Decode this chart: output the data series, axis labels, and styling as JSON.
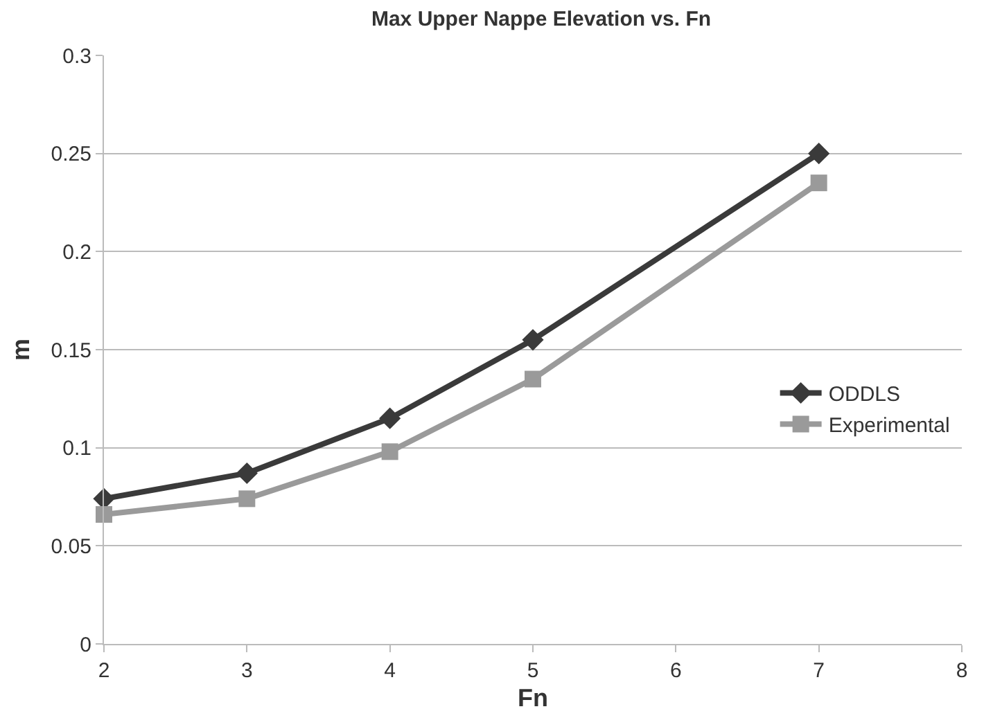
{
  "chart_data": {
    "type": "line",
    "title": "Max Upper Nappe Elevation vs. Fn",
    "xlabel": "Fn",
    "ylabel": "m",
    "x": [
      2,
      3,
      4,
      5,
      7
    ],
    "series": [
      {
        "name": "ODDLS",
        "color": "#3a3a3a",
        "marker": "diamond",
        "values": [
          0.074,
          0.087,
          0.115,
          0.155,
          0.25
        ]
      },
      {
        "name": "Experimental",
        "color": "#9a9a9a",
        "marker": "square",
        "values": [
          0.066,
          0.074,
          0.098,
          0.135,
          0.235
        ]
      }
    ],
    "xlim": [
      2,
      8
    ],
    "xticks": [
      2,
      3,
      4,
      5,
      6,
      7,
      8
    ],
    "ylim": [
      0,
      0.3
    ],
    "yticks": [
      0,
      0.05,
      0.1,
      0.15,
      0.2,
      0.25,
      0.3
    ],
    "grid": "y",
    "legend": "right",
    "line_style": "solid"
  }
}
